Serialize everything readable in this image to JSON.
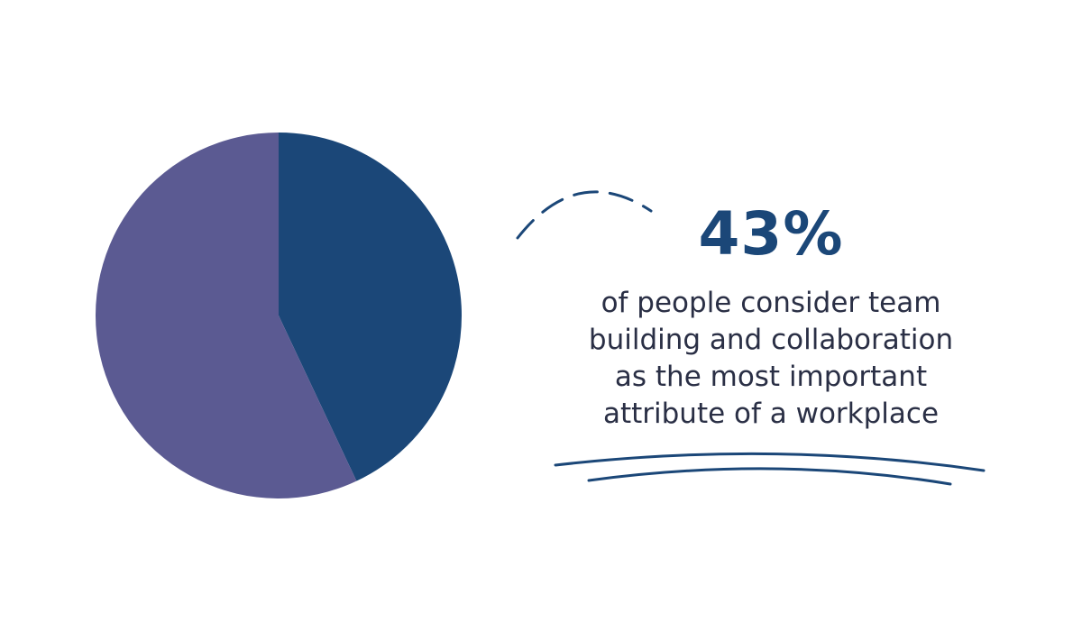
{
  "colors": {
    "background": "#ffffff",
    "accent": "#1b4778",
    "secondary": "#5b5a92",
    "text": "#2a2f45"
  },
  "stat": {
    "value": "43%",
    "caption_lines": [
      "of people consider team",
      "building and collaboration",
      "as the most important",
      "attribute of a workplace"
    ]
  },
  "chart_data": {
    "type": "pie",
    "title": "",
    "slices": [
      {
        "value": 43,
        "color": "#1b4778"
      },
      {
        "value": 57,
        "color": "#5b5a92"
      }
    ],
    "start_angle_deg": 0,
    "direction": "clockwise",
    "legend": "none"
  }
}
